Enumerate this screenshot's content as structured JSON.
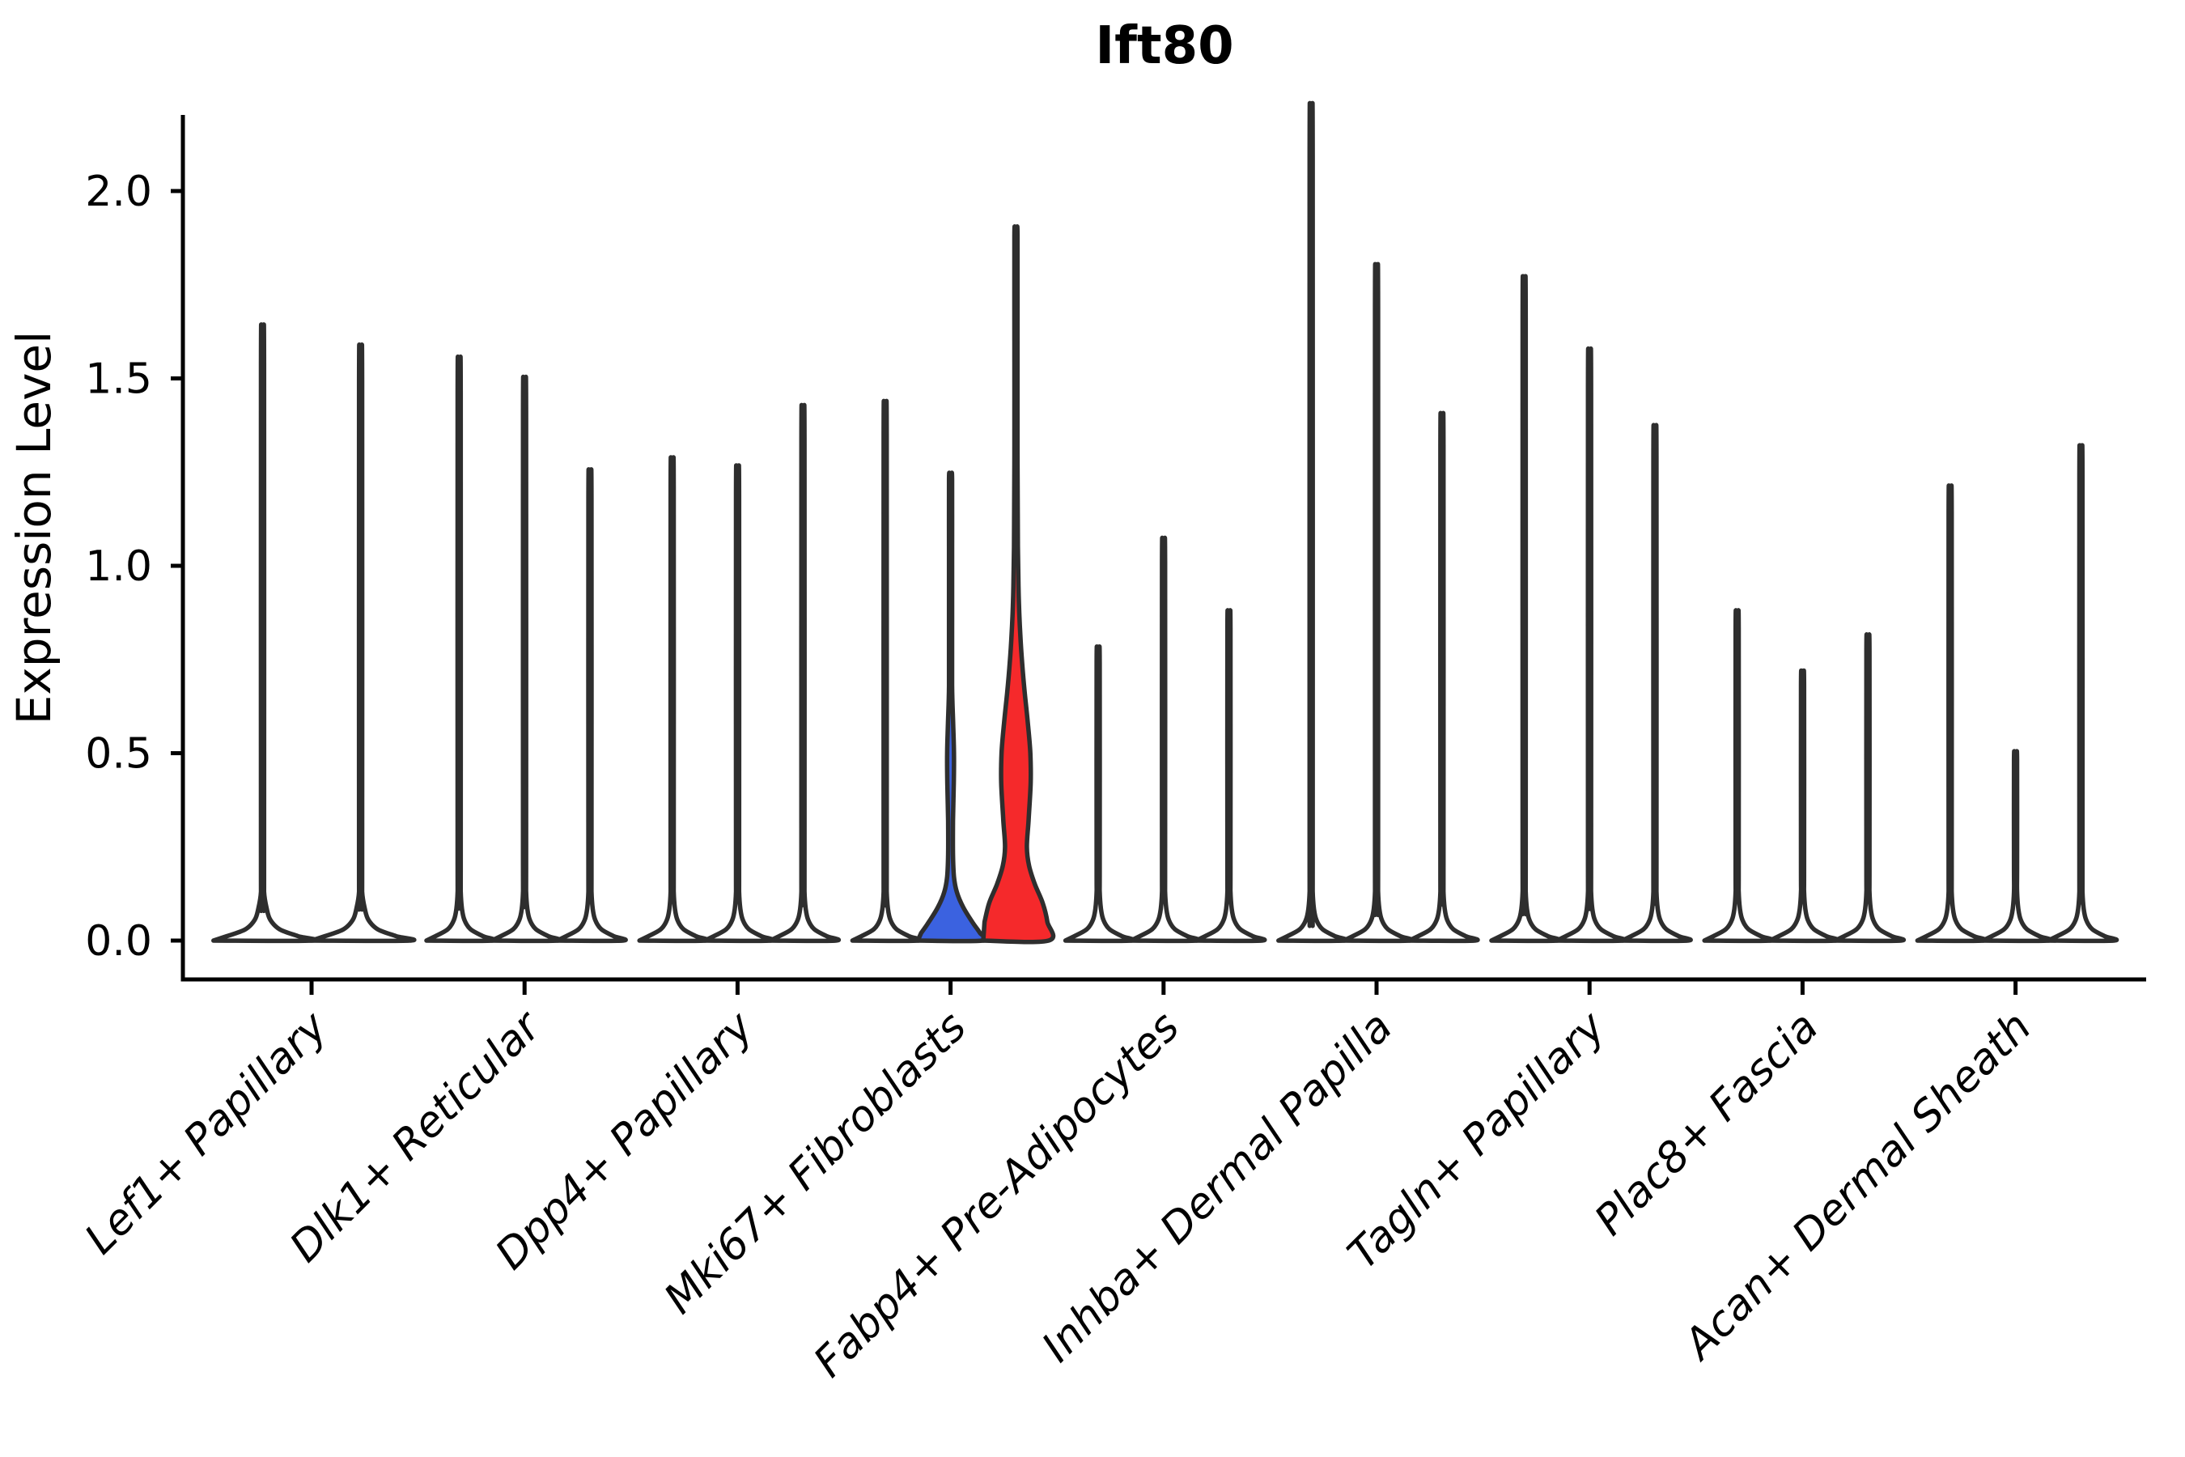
{
  "title": "Ift80",
  "y_axis": {
    "label": "Expression Level",
    "ticks": [
      0.0,
      0.5,
      1.0,
      1.5,
      2.0
    ],
    "tick_labels": [
      "0.0",
      "0.5",
      "1.0",
      "1.5",
      "2.0"
    ],
    "range": [
      -0.1,
      2.2
    ]
  },
  "x_axis": {
    "categories": [
      "Lef1+ Papillary",
      "Dlk1+ Reticular",
      "Dpp4+ Papillary",
      "Mki67+ Fibroblasts",
      "Fabp4+ Pre-Adipocytes",
      "Inhba+ Dermal Papilla",
      "Tagln+ Papillary",
      "Plac8+ Fascia",
      "Acan+ Dermal Sheath"
    ]
  },
  "colors": {
    "outline": "#2E2E2E",
    "spine": "#000000",
    "violin_fill": "#FFFFFF",
    "blue": "#3B62E0",
    "red": "#F5292B",
    "background": "#FFFFFF",
    "text": "#000000"
  },
  "chart_data": {
    "type": "violin",
    "title": "Ift80",
    "xlabel": "",
    "ylabel": "Expression Level",
    "ylim": [
      -0.1,
      2.2
    ],
    "yticks": [
      0.0,
      0.5,
      1.0,
      1.5,
      2.0
    ],
    "legend": "none",
    "grid": false,
    "categories": [
      "Lef1+ Papillary",
      "Dlk1+ Reticular",
      "Dpp4+ Papillary",
      "Mki67+ Fibroblasts",
      "Fabp4+ Pre-Adipocytes",
      "Inhba+ Dermal Papilla",
      "Tagln+ Papillary",
      "Plac8+ Fascia",
      "Acan+ Dermal Sheath"
    ],
    "description": "Each category holds 2-3 very thin violins (expression mostly 0, thin spike to max value). Only Mki67+ Fibroblasts has visibly filled blue and red violins with body mass above 0.",
    "groups": [
      {
        "category": "Lef1+ Papillary",
        "violins": [
          {
            "max": 1.55,
            "fill": "white",
            "profile": "plain"
          },
          {
            "max": 1.5,
            "fill": "white",
            "profile": "plain"
          }
        ]
      },
      {
        "category": "Dlk1+ Reticular",
        "violins": [
          {
            "max": 1.47,
            "fill": "white",
            "profile": "plain"
          },
          {
            "max": 1.42,
            "fill": "white",
            "profile": "plain"
          },
          {
            "max": 1.19,
            "fill": "white",
            "profile": "plain"
          }
        ]
      },
      {
        "category": "Dpp4+ Papillary",
        "violins": [
          {
            "max": 1.22,
            "fill": "white",
            "profile": "plain"
          },
          {
            "max": 1.2,
            "fill": "white",
            "profile": "plain"
          },
          {
            "max": 1.35,
            "fill": "white",
            "profile": "plain"
          }
        ]
      },
      {
        "category": "Mki67+ Fibroblasts",
        "violins": [
          {
            "max": 1.36,
            "fill": "white",
            "profile": "plain"
          },
          {
            "max": 1.24,
            "fill": "blue",
            "profile": "blue"
          },
          {
            "max": 1.89,
            "fill": "red",
            "profile": "red"
          }
        ]
      },
      {
        "category": "Fabp4+ Pre-Adipocytes",
        "violins": [
          {
            "max": 0.75,
            "fill": "white",
            "profile": "plain"
          },
          {
            "max": 1.02,
            "fill": "white",
            "profile": "plain"
          },
          {
            "max": 0.84,
            "fill": "white",
            "profile": "plain"
          }
        ]
      },
      {
        "category": "Inhba+ Dermal Papilla",
        "violins": [
          {
            "max": 2.1,
            "fill": "white",
            "profile": "plain"
          },
          {
            "max": 1.7,
            "fill": "white",
            "profile": "plain"
          },
          {
            "max": 1.33,
            "fill": "white",
            "profile": "plain"
          }
        ]
      },
      {
        "category": "Tagln+ Papillary",
        "violins": [
          {
            "max": 1.67,
            "fill": "white",
            "profile": "plain"
          },
          {
            "max": 1.49,
            "fill": "white",
            "profile": "plain"
          },
          {
            "max": 1.3,
            "fill": "white",
            "profile": "plain"
          }
        ]
      },
      {
        "category": "Plac8+ Fascia",
        "violins": [
          {
            "max": 0.84,
            "fill": "white",
            "profile": "plain"
          },
          {
            "max": 0.69,
            "fill": "white",
            "profile": "plain"
          },
          {
            "max": 0.78,
            "fill": "white",
            "profile": "plain"
          }
        ]
      },
      {
        "category": "Acan+ Dermal Sheath",
        "violins": [
          {
            "max": 1.15,
            "fill": "white",
            "profile": "plain"
          },
          {
            "max": 0.49,
            "fill": "white",
            "profile": "plain"
          },
          {
            "max": 1.25,
            "fill": "white",
            "profile": "plain"
          }
        ]
      }
    ],
    "profiles": {
      "plain": [
        [
          0,
          1.0
        ],
        [
          0.012,
          0.72
        ],
        [
          0.03,
          0.35
        ],
        [
          0.055,
          0.16
        ],
        [
          0.085,
          0.085
        ],
        [
          0.13,
          0.05
        ],
        [
          0.2,
          0.045
        ]
      ],
      "blue": [
        [
          0,
          1.0
        ],
        [
          0.02,
          0.9
        ],
        [
          0.05,
          0.66
        ],
        [
          0.09,
          0.38
        ],
        [
          0.13,
          0.19
        ],
        [
          0.17,
          0.105
        ],
        [
          0.23,
          0.075
        ],
        [
          0.32,
          0.075
        ],
        [
          0.42,
          0.1
        ],
        [
          0.5,
          0.105
        ],
        [
          0.58,
          0.08
        ],
        [
          0.68,
          0.058
        ],
        [
          0.85,
          0.05
        ],
        [
          1.05,
          0.048
        ]
      ],
      "red": [
        [
          0,
          1.0
        ],
        [
          0.05,
          0.96
        ],
        [
          0.1,
          0.82
        ],
        [
          0.15,
          0.58
        ],
        [
          0.2,
          0.4
        ],
        [
          0.25,
          0.335
        ],
        [
          0.32,
          0.385
        ],
        [
          0.42,
          0.45
        ],
        [
          0.5,
          0.44
        ],
        [
          0.58,
          0.365
        ],
        [
          0.66,
          0.27
        ],
        [
          0.74,
          0.19
        ],
        [
          0.82,
          0.13
        ],
        [
          0.92,
          0.085
        ],
        [
          1.05,
          0.06
        ],
        [
          1.3,
          0.05
        ],
        [
          1.6,
          0.045
        ]
      ]
    }
  }
}
